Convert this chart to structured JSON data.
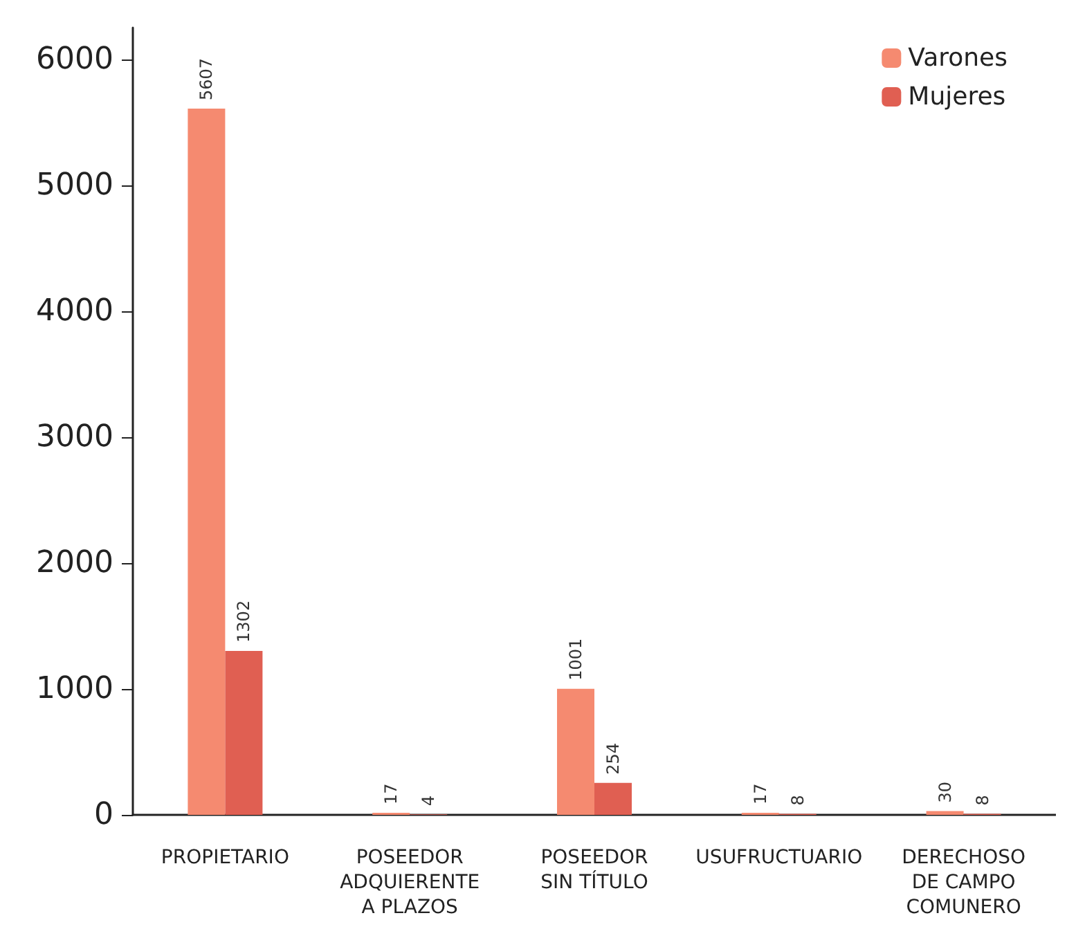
{
  "chart_data": {
    "type": "bar",
    "categories": [
      "PROPIETARIO",
      "POSEEDOR\nADQUIERENTE\nA PLAZOS",
      "POSEEDOR\nSIN TÍTULO",
      "USUFRUCTUARIO",
      "DERECHOSO\nDE CAMPO\nCOMUNERO"
    ],
    "series": [
      {
        "name": "Varones",
        "color": "#f58a70",
        "values": [
          5607,
          17,
          1001,
          17,
          30
        ]
      },
      {
        "name": "Mujeres",
        "color": "#e05f52",
        "values": [
          1302,
          4,
          254,
          8,
          8
        ]
      }
    ],
    "ylim": [
      0,
      6250
    ],
    "yticks": [
      0,
      1000,
      2000,
      3000,
      4000,
      5000,
      6000
    ],
    "grid": false,
    "legend": "top right",
    "data_labels": true
  }
}
